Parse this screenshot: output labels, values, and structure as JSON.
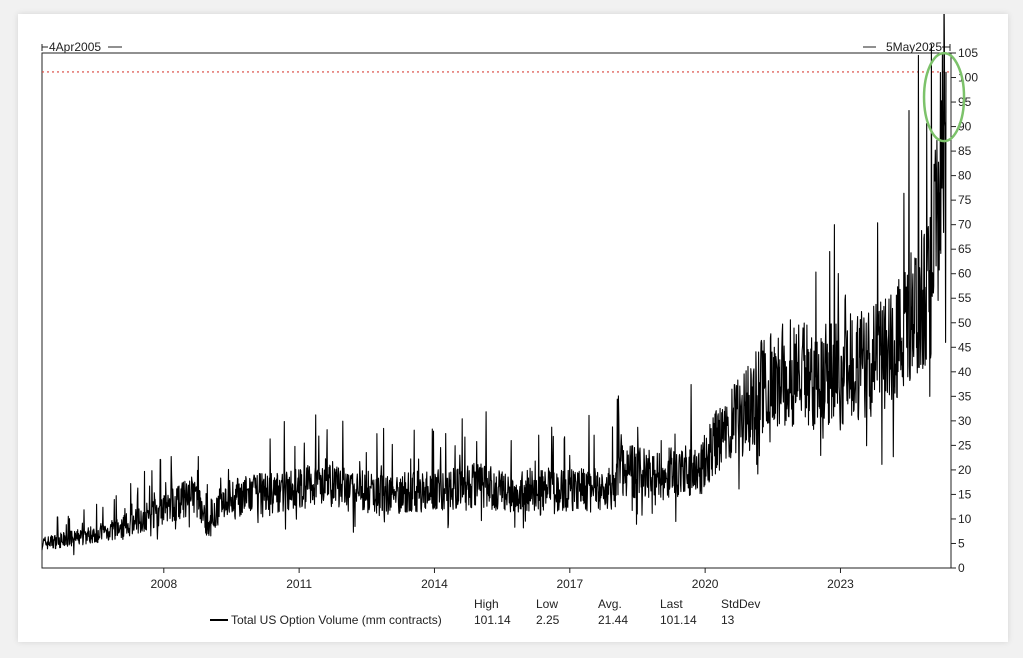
{
  "chart_data": {
    "type": "line",
    "date_range": {
      "start_label": "4Apr2005",
      "end_label": "5May2025"
    },
    "x_tick_labels": [
      "2008",
      "2011",
      "2014",
      "2017",
      "2020",
      "2023"
    ],
    "y_tick_labels": [
      "0",
      "5",
      "10",
      "15",
      "20",
      "25",
      "30",
      "35",
      "40",
      "45",
      "50",
      "55",
      "60",
      "65",
      "70",
      "75",
      "80",
      "85",
      "90",
      "95",
      "100",
      "105"
    ],
    "ylim": [
      0,
      105
    ],
    "grid": false,
    "reference_line": {
      "value": 101.14,
      "color": "#d9453c",
      "style": "dotted"
    },
    "highlight": {
      "shape": "ellipse",
      "color": "#7cc26a",
      "around": "final peak"
    },
    "series": [
      {
        "name": "Total US Option Volume (mm contracts)",
        "color": "#000000",
        "trend": [
          [
            2005.3,
            5
          ],
          [
            2006.0,
            6
          ],
          [
            2007.0,
            8
          ],
          [
            2008.0,
            12
          ],
          [
            2008.7,
            15
          ],
          [
            2009.0,
            8
          ],
          [
            2009.3,
            14
          ],
          [
            2010.0,
            15
          ],
          [
            2011.0,
            16
          ],
          [
            2011.5,
            18
          ],
          [
            2012.0,
            16
          ],
          [
            2013.0,
            15
          ],
          [
            2014.0,
            16
          ],
          [
            2015.0,
            17
          ],
          [
            2015.7,
            15
          ],
          [
            2016.0,
            16
          ],
          [
            2017.0,
            16
          ],
          [
            2018.0,
            16
          ],
          [
            2018.1,
            20
          ],
          [
            2019.0,
            19
          ],
          [
            2019.9,
            20
          ],
          [
            2020.1,
            24
          ],
          [
            2020.5,
            28
          ],
          [
            2021.0,
            33
          ],
          [
            2021.3,
            38
          ],
          [
            2022.0,
            40
          ],
          [
            2023.0,
            40
          ],
          [
            2024.0,
            44
          ],
          [
            2024.5,
            50
          ],
          [
            2025.0,
            58
          ],
          [
            2025.34,
            101.14
          ]
        ]
      }
    ],
    "stats": {
      "headers": [
        "High",
        "Low",
        "Avg.",
        "Last",
        "StdDev"
      ],
      "values": [
        "101.14",
        "2.25",
        "21.44",
        "101.14",
        "13"
      ]
    }
  }
}
